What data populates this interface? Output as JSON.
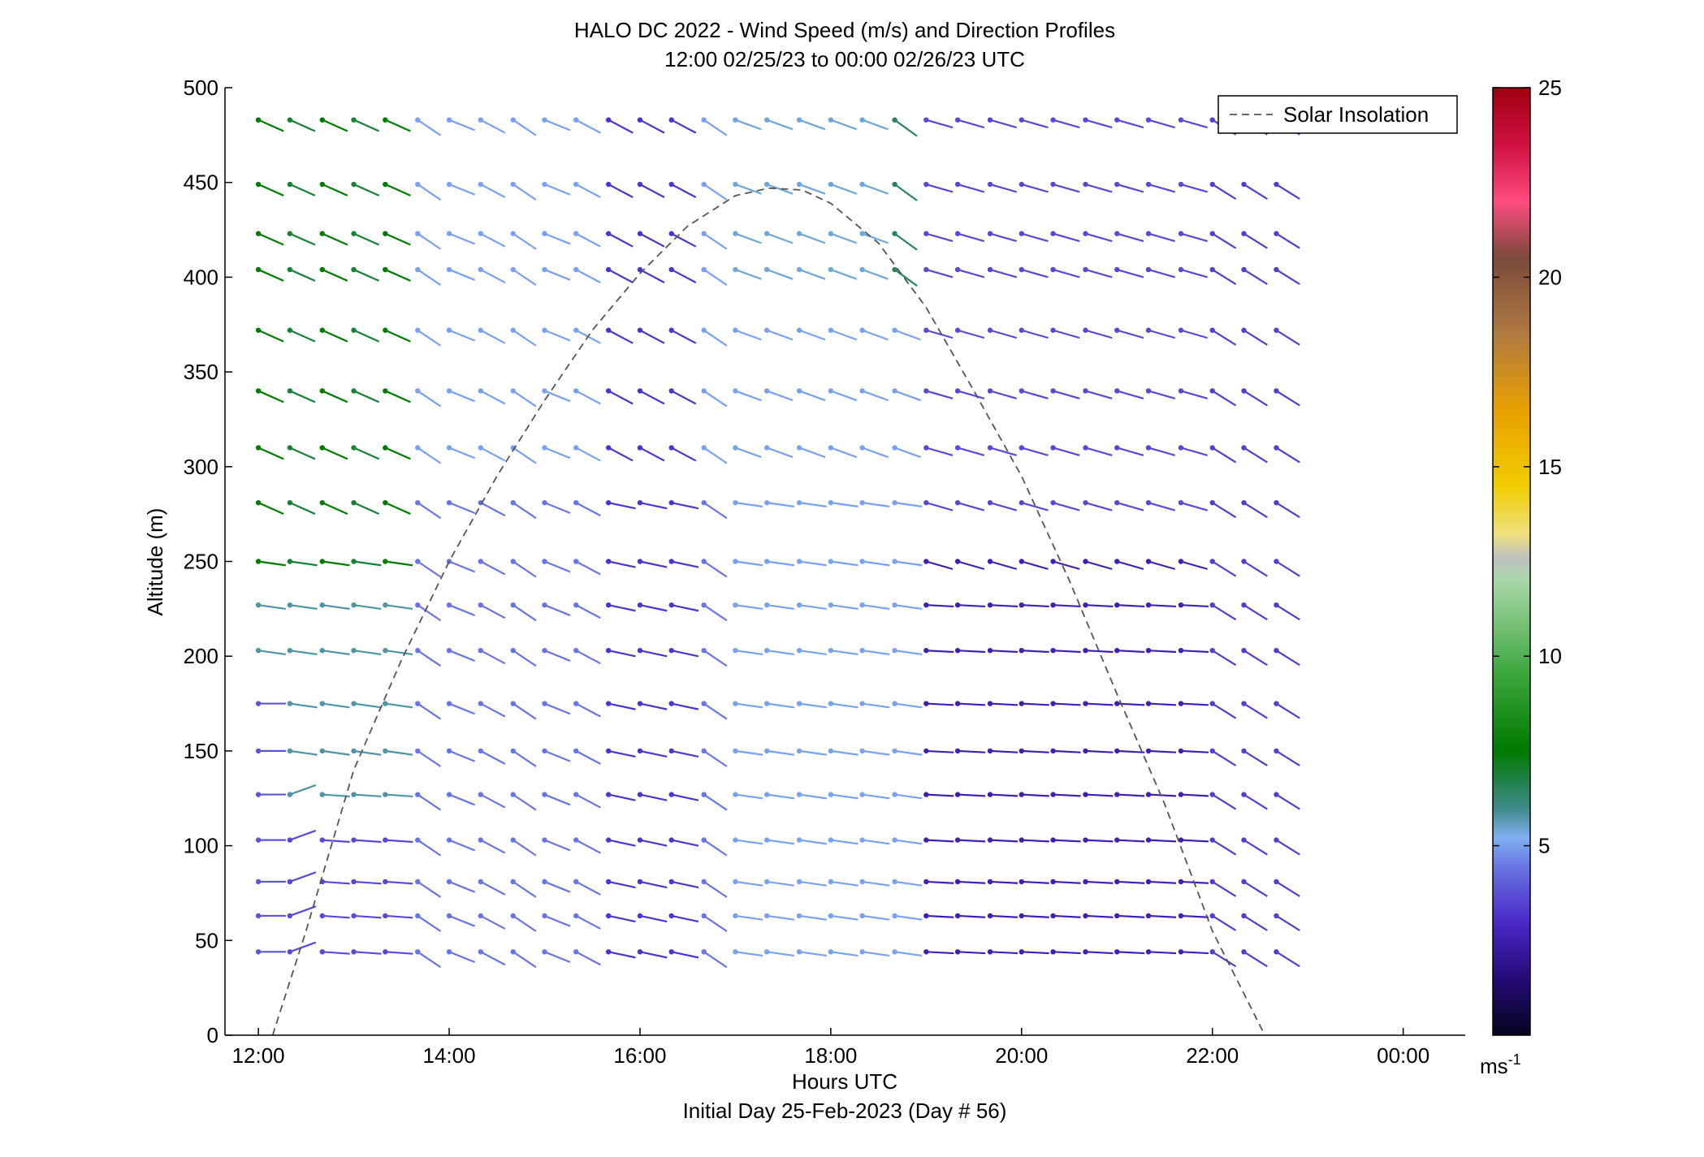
{
  "chart_data": {
    "type": "wind-barb-profile",
    "title": "HALO DC 2022 - Wind Speed (m/s) and Direction Profiles",
    "subtitle": "12:00 02/25/23 to 00:00 02/26/23  UTC",
    "xlabel": "Hours UTC",
    "xlabel_sub": "Initial Day 25-Feb-2023 (Day # 56)",
    "ylabel": "Altitude (m)",
    "xlim": [
      11.65,
      24.65
    ],
    "ylim": [
      0,
      500
    ],
    "x_ticks": [
      12,
      14,
      16,
      18,
      20,
      22,
      24
    ],
    "x_tick_labels": [
      "12:00",
      "14:00",
      "16:00",
      "18:00",
      "20:00",
      "22:00",
      "00:00"
    ],
    "y_ticks": [
      0,
      50,
      100,
      150,
      200,
      250,
      300,
      350,
      400,
      450,
      500
    ],
    "y_tick_labels": [
      "0",
      "50",
      "100",
      "150",
      "200",
      "250",
      "300",
      "350",
      "400",
      "450",
      "500"
    ],
    "colorbar": {
      "label_base": "ms",
      "label_exp": "-1",
      "range": [
        0,
        25
      ],
      "ticks": [
        5,
        10,
        15,
        20,
        25
      ],
      "tick_labels": [
        "5",
        "10",
        "15",
        "20",
        "25"
      ],
      "stops": [
        {
          "v": 0,
          "c": "#05051e"
        },
        {
          "v": 1.5,
          "c": "#250a78"
        },
        {
          "v": 3,
          "c": "#4a28c8"
        },
        {
          "v": 4.5,
          "c": "#6a7ae4"
        },
        {
          "v": 5.2,
          "c": "#7fb0f2"
        },
        {
          "v": 6,
          "c": "#3e8a8a"
        },
        {
          "v": 7.5,
          "c": "#007a00"
        },
        {
          "v": 9.5,
          "c": "#3aa63a"
        },
        {
          "v": 12,
          "c": "#a8d8a8"
        },
        {
          "v": 12.6,
          "c": "#c0c0c0"
        },
        {
          "v": 13.2,
          "c": "#eee080"
        },
        {
          "v": 14.5,
          "c": "#f0cc00"
        },
        {
          "v": 16.5,
          "c": "#e8a000"
        },
        {
          "v": 18.5,
          "c": "#b07a40"
        },
        {
          "v": 20.5,
          "c": "#7a4a3a"
        },
        {
          "v": 22,
          "c": "#ff4b80"
        },
        {
          "v": 23.5,
          "c": "#d01040"
        },
        {
          "v": 25,
          "c": "#a00010"
        }
      ]
    },
    "legend": {
      "position": "top-right",
      "entries": [
        "Solar Insolation"
      ]
    },
    "solar_insolation": {
      "style": "dashed",
      "color": "#555555",
      "x": [
        12.15,
        12.5,
        13.0,
        13.5,
        14.0,
        14.5,
        15.0,
        15.5,
        16.0,
        16.5,
        17.0,
        17.35,
        17.7,
        18.0,
        18.5,
        19.0,
        19.5,
        20.0,
        20.5,
        21.0,
        21.5,
        22.0,
        22.55
      ],
      "y": [
        0,
        55,
        140,
        198,
        250,
        295,
        335,
        372,
        402,
        427,
        443,
        447,
        446,
        439,
        418,
        384,
        340,
        295,
        240,
        180,
        122,
        55,
        0
      ]
    },
    "wind_altitudes": [
      44,
      63,
      81,
      103,
      127,
      150,
      175,
      203,
      227,
      250,
      281,
      310,
      340,
      372,
      404,
      423,
      449,
      483
    ],
    "wind_times": [
      12.0,
      12.33,
      12.67,
      13.0,
      13.33,
      13.67,
      14.0,
      14.33,
      14.67,
      15.0,
      15.33,
      15.67,
      16.0,
      16.33,
      16.67,
      17.0,
      17.33,
      17.67,
      18.0,
      18.33,
      18.67,
      19.0,
      19.33,
      19.67,
      20.0,
      20.33,
      20.67,
      21.0,
      21.33,
      21.67,
      22.0,
      22.33,
      22.67
    ],
    "wind_note": "Each barb is a line from the dot at (time, altitude); direction given in degrees clockwise from +x (screen), speed in m/s sets color."
  }
}
